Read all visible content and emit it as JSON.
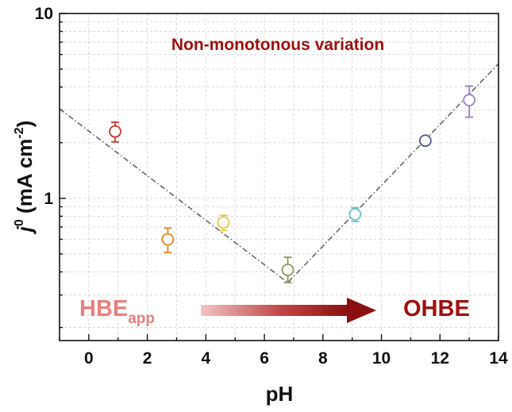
{
  "chart_data": {
    "type": "scatter",
    "xlabel": "pH",
    "ylabel": {
      "symbol": "j",
      "superscript": "0",
      "unit_open": " (mA cm",
      "unit_exp": "-2",
      "unit_close": ")"
    },
    "x_ticks": [
      "0",
      "2",
      "4",
      "6",
      "8",
      "10",
      "12",
      "14"
    ],
    "y_ticks": [
      "1",
      "10"
    ],
    "xlim": [
      -1,
      14
    ],
    "ylim": [
      0.17,
      10
    ],
    "y_scale": "log",
    "grid": true,
    "points": [
      {
        "x": 0.9,
        "y": 2.3,
        "err": [
          0.28,
          0.28
        ],
        "color": "#c0392b"
      },
      {
        "x": 2.7,
        "y": 0.6,
        "err": [
          0.09,
          0.09
        ],
        "color": "#e08a1e"
      },
      {
        "x": 4.6,
        "y": 0.74,
        "err": [
          0.07,
          0.07
        ],
        "color": "#e6c84a"
      },
      {
        "x": 6.8,
        "y": 0.41,
        "err": [
          0.06,
          0.07
        ],
        "color": "#8a9a5b"
      },
      {
        "x": 9.1,
        "y": 0.82,
        "err": [
          0.07,
          0.07
        ],
        "color": "#6cc5c8"
      },
      {
        "x": 11.5,
        "y": 2.05,
        "err": [
          0.08,
          0.08
        ],
        "color": "#4a5a7a"
      },
      {
        "x": 13.0,
        "y": 3.4,
        "err": [
          0.65,
          0.65
        ],
        "color": "#9b7fc4"
      }
    ],
    "trend_line": {
      "points": [
        [
          -1,
          3.05
        ],
        [
          6.8,
          0.35
        ],
        [
          14,
          5.35
        ]
      ],
      "color": "#666666",
      "style": "dash-dot"
    },
    "annotations": {
      "title": "Non-monotonous variation",
      "title_color": "#a01010",
      "start_label": "HBE",
      "start_sub": "app",
      "start_color": "#e88080",
      "end_label": "OHBE",
      "end_color": "#a01010"
    }
  }
}
